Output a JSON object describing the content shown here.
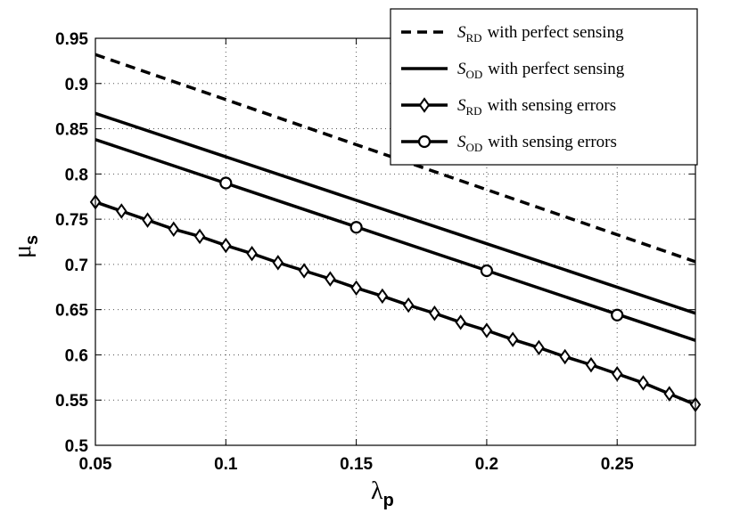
{
  "chart_data": {
    "type": "line",
    "title": "",
    "xlabel": {
      "symbol": "λ",
      "subscript": "p"
    },
    "ylabel": {
      "symbol": "μ",
      "subscript": "s"
    },
    "xlim": [
      0.05,
      0.28
    ],
    "ylim": [
      0.5,
      0.95
    ],
    "xticks": [
      0.05,
      0.1,
      0.15,
      0.2,
      0.25
    ],
    "xtick_labels": [
      "0.05",
      "0.1",
      "0.15",
      "0.2",
      "0.25"
    ],
    "yticks": [
      0.5,
      0.55,
      0.6,
      0.65,
      0.7,
      0.75,
      0.8,
      0.85,
      0.9,
      0.95
    ],
    "ytick_labels": [
      "0.5",
      "0.55",
      "0.6",
      "0.65",
      "0.7",
      "0.75",
      "0.8",
      "0.85",
      "0.9",
      "0.95"
    ],
    "grid": true,
    "legend_position": "top-right",
    "series": [
      {
        "name": "S_RD with perfect sensing",
        "legend": {
          "script": "S",
          "sub": "RD",
          "text": "with perfect sensing"
        },
        "style": "dashed",
        "marker": "none",
        "x": [
          0.05,
          0.28
        ],
        "y": [
          0.932,
          0.703
        ]
      },
      {
        "name": "S_OD with perfect sensing",
        "legend": {
          "script": "S",
          "sub": "OD",
          "text": "with perfect sensing"
        },
        "style": "solid",
        "marker": "none",
        "x": [
          0.05,
          0.28
        ],
        "y": [
          0.867,
          0.646
        ]
      },
      {
        "name": "S_RD with sensing errors",
        "legend": {
          "script": "S",
          "sub": "RD",
          "text": "with sensing errors"
        },
        "style": "solid",
        "marker": "diamond",
        "x": [
          0.05,
          0.06,
          0.07,
          0.08,
          0.09,
          0.1,
          0.11,
          0.12,
          0.13,
          0.14,
          0.15,
          0.16,
          0.17,
          0.18,
          0.19,
          0.2,
          0.21,
          0.22,
          0.23,
          0.24,
          0.25,
          0.26,
          0.27,
          0.28
        ],
        "y": [
          0.769,
          0.759,
          0.749,
          0.739,
          0.731,
          0.721,
          0.712,
          0.702,
          0.693,
          0.684,
          0.674,
          0.665,
          0.655,
          0.646,
          0.636,
          0.627,
          0.617,
          0.608,
          0.598,
          0.589,
          0.579,
          0.569,
          0.557,
          0.545
        ]
      },
      {
        "name": "S_OD with sensing errors",
        "legend": {
          "script": "S",
          "sub": "OD",
          "text": "with sensing errors"
        },
        "style": "solid",
        "marker": "circle",
        "x": [
          0.05,
          0.28
        ],
        "y": [
          0.838,
          0.616
        ],
        "marker_points": {
          "x": [
            0.1,
            0.15,
            0.2,
            0.25
          ],
          "y": [
            0.79,
            0.741,
            0.693,
            0.644
          ]
        }
      }
    ]
  }
}
